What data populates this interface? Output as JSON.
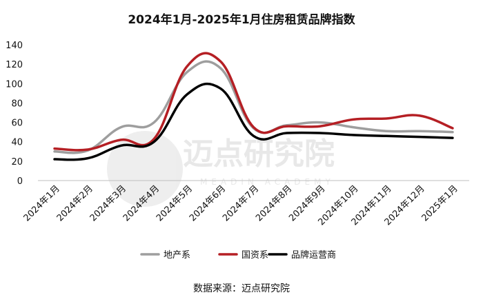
{
  "chart_data": {
    "type": "line",
    "title": "2024年1月-2025年1月住房租赁品牌指数",
    "categories": [
      "2024年1月",
      "2024年2月",
      "2024年3月",
      "2024年4月",
      "2024年5月",
      "2024年6月",
      "2024年7月",
      "2024年8月",
      "2024年9月",
      "2024年10月",
      "2024年11月",
      "2024年12月",
      "2025年1月"
    ],
    "ylim": [
      0,
      140
    ],
    "yticks": [
      0,
      20,
      40,
      60,
      80,
      100,
      120,
      140
    ],
    "grid": false,
    "legend_position": "bottom",
    "series": [
      {
        "name": "地产系",
        "color": "#9e9e9e",
        "values": [
          30,
          31,
          55,
          60,
          112,
          116,
          54,
          57,
          60,
          55,
          51,
          51,
          50
        ]
      },
      {
        "name": "国资系",
        "color": "#b51f24",
        "values": [
          33,
          32,
          42,
          43,
          118,
          123,
          55,
          56,
          56,
          63,
          64,
          67,
          54
        ]
      },
      {
        "name": "品牌运营商",
        "color": "#000000",
        "values": [
          22,
          23,
          36,
          40,
          89,
          95,
          46,
          49,
          49,
          47,
          46,
          45,
          44
        ]
      }
    ]
  },
  "source": "数据来源：迈点研究院",
  "watermark": {
    "text": "迈点研究院",
    "sub": "MEADIN ACADEMY"
  }
}
